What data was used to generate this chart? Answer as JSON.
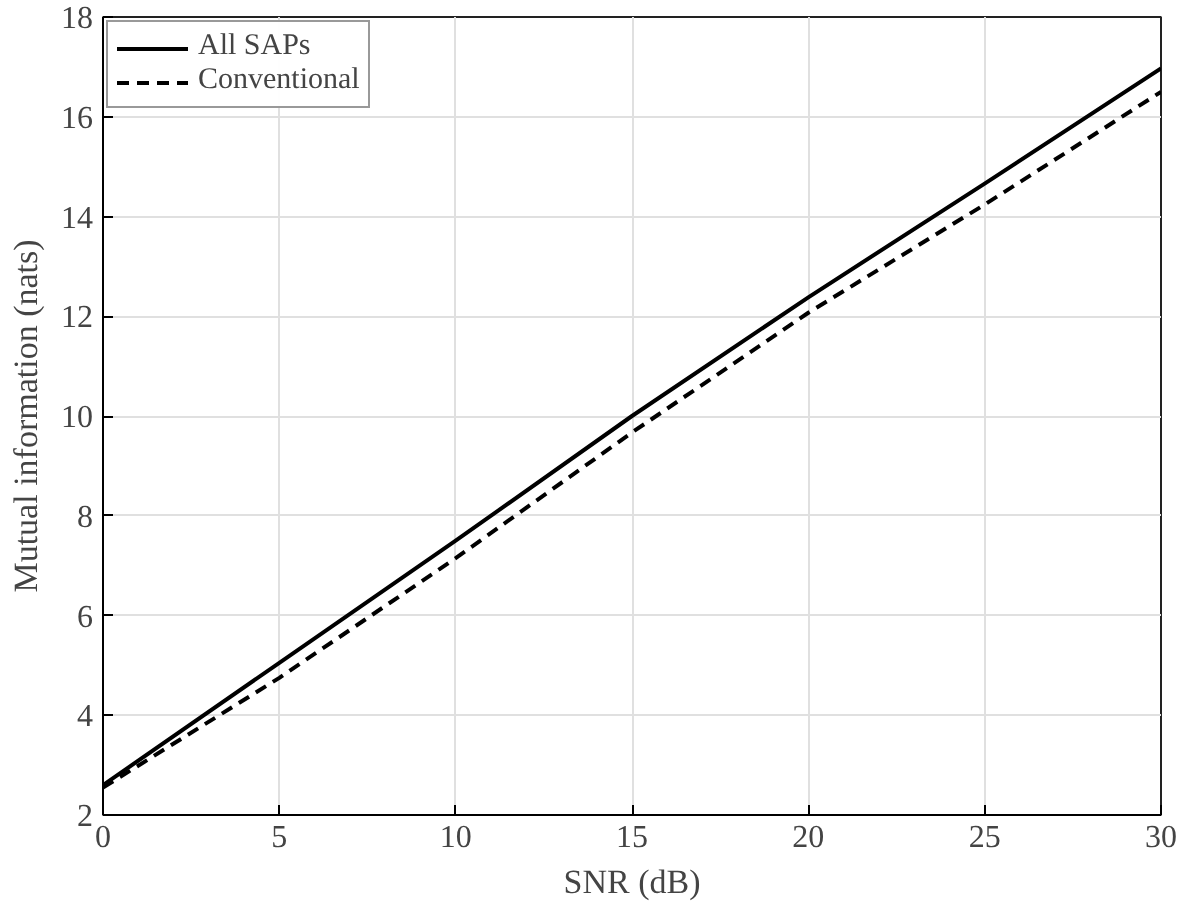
{
  "chart_data": {
    "type": "line",
    "xlabel": "SNR (dB)",
    "ylabel": "Mutual information (nats)",
    "x": [
      0,
      5,
      10,
      15,
      20,
      25,
      30
    ],
    "series": [
      {
        "name": "All SAPs",
        "color": "#000000",
        "line_style": "solid",
        "values": [
          2.6,
          5.05,
          7.5,
          10.0,
          12.38,
          14.66,
          16.97
        ]
      },
      {
        "name": "Conventional",
        "color": "#000000",
        "line_style": "dashed",
        "values": [
          2.55,
          4.75,
          7.15,
          9.67,
          12.07,
          14.24,
          16.5
        ]
      }
    ],
    "xlim": [
      0,
      30
    ],
    "xticks": [
      0,
      5,
      10,
      15,
      20,
      25,
      30
    ],
    "ylim": [
      2,
      18
    ],
    "yticks": [
      2,
      4,
      6,
      8,
      10,
      12,
      14,
      16,
      18
    ],
    "grid": true,
    "legend": "top left",
    "marker": "none"
  }
}
